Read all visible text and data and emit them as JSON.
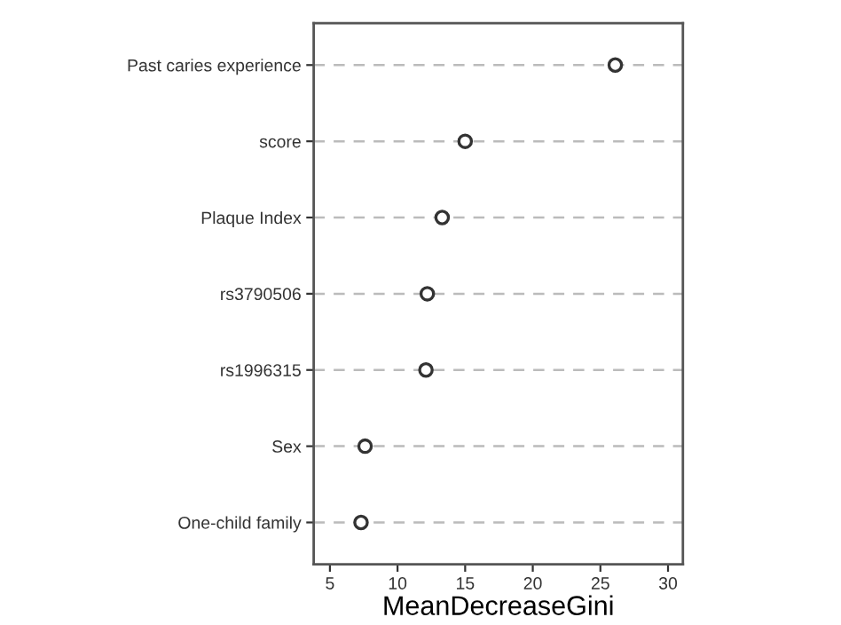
{
  "chart_data": {
    "type": "scatter",
    "orientation": "horizontal",
    "xlabel": "MeanDecreaseGini",
    "categories": [
      "Past caries experience",
      "score",
      "Plaque Index",
      "rs3790506",
      "rs1996315",
      "Sex",
      "One-child family"
    ],
    "series": [
      {
        "color": "#333333",
        "values": [
          26.1,
          15.0,
          13.3,
          12.2,
          12.1,
          7.6,
          7.3
        ]
      }
    ],
    "xlim": [
      3.8,
      31.1
    ],
    "xticks": [
      5,
      10,
      15,
      20,
      25,
      30
    ],
    "grid": "y",
    "marker": "circle"
  }
}
